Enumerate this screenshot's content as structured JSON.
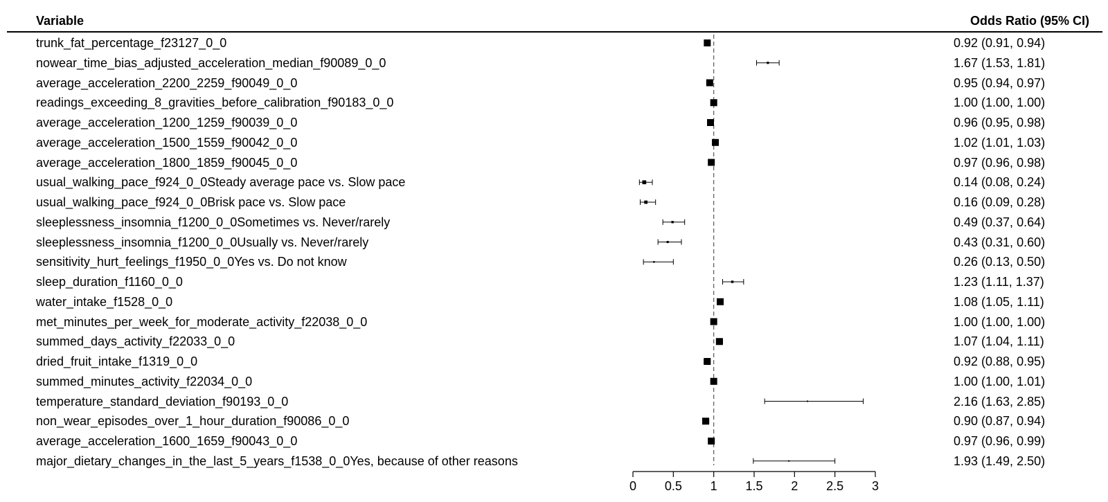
{
  "headers": {
    "variable": "Variable",
    "odds_ratio": "Odds Ratio (95% CI)"
  },
  "chart_data": {
    "type": "forest",
    "reference_line": 1,
    "xlim": [
      0,
      3
    ],
    "x_ticks": [
      "0",
      "0.5",
      "1",
      "1.5",
      "2",
      "2.5",
      "3"
    ],
    "rows": [
      {
        "label": "trunk_fat_percentage_f23127_0_0",
        "or": 0.92,
        "lo": 0.91,
        "hi": 0.94,
        "ci_text": "0.92 (0.91, 0.94)"
      },
      {
        "label": "nowear_time_bias_adjusted_acceleration_median_f90089_0_0",
        "or": 1.67,
        "lo": 1.53,
        "hi": 1.81,
        "ci_text": "1.67 (1.53, 1.81)"
      },
      {
        "label": "average_acceleration_2200_2259_f90049_0_0",
        "or": 0.95,
        "lo": 0.94,
        "hi": 0.97,
        "ci_text": "0.95 (0.94, 0.97)"
      },
      {
        "label": "readings_exceeding_8_gravities_before_calibration_f90183_0_0",
        "or": 1.0,
        "lo": 1.0,
        "hi": 1.0,
        "ci_text": "1.00 (1.00, 1.00)"
      },
      {
        "label": "average_acceleration_1200_1259_f90039_0_0",
        "or": 0.96,
        "lo": 0.95,
        "hi": 0.98,
        "ci_text": "0.96 (0.95, 0.98)"
      },
      {
        "label": "average_acceleration_1500_1559_f90042_0_0",
        "or": 1.02,
        "lo": 1.01,
        "hi": 1.03,
        "ci_text": "1.02 (1.01, 1.03)"
      },
      {
        "label": "average_acceleration_1800_1859_f90045_0_0",
        "or": 0.97,
        "lo": 0.96,
        "hi": 0.98,
        "ci_text": "0.97 (0.96, 0.98)"
      },
      {
        "label": "usual_walking_pace_f924_0_0Steady average pace vs. Slow pace",
        "or": 0.14,
        "lo": 0.08,
        "hi": 0.24,
        "ci_text": "0.14 (0.08, 0.24)"
      },
      {
        "label": "usual_walking_pace_f924_0_0Brisk pace vs. Slow pace",
        "or": 0.16,
        "lo": 0.09,
        "hi": 0.28,
        "ci_text": "0.16 (0.09, 0.28)"
      },
      {
        "label": "sleeplessness_insomnia_f1200_0_0Sometimes vs. Never/rarely",
        "or": 0.49,
        "lo": 0.37,
        "hi": 0.64,
        "ci_text": "0.49 (0.37, 0.64)"
      },
      {
        "label": "sleeplessness_insomnia_f1200_0_0Usually vs. Never/rarely",
        "or": 0.43,
        "lo": 0.31,
        "hi": 0.6,
        "ci_text": "0.43 (0.31, 0.60)"
      },
      {
        "label": "sensitivity_hurt_feelings_f1950_0_0Yes vs. Do not know",
        "or": 0.26,
        "lo": 0.13,
        "hi": 0.5,
        "ci_text": "0.26 (0.13, 0.50)"
      },
      {
        "label": "sleep_duration_f1160_0_0",
        "or": 1.23,
        "lo": 1.11,
        "hi": 1.37,
        "ci_text": "1.23 (1.11, 1.37)"
      },
      {
        "label": "water_intake_f1528_0_0",
        "or": 1.08,
        "lo": 1.05,
        "hi": 1.11,
        "ci_text": "1.08 (1.05, 1.11)"
      },
      {
        "label": "met_minutes_per_week_for_moderate_activity_f22038_0_0",
        "or": 1.0,
        "lo": 1.0,
        "hi": 1.0,
        "ci_text": "1.00 (1.00, 1.00)"
      },
      {
        "label": "summed_days_activity_f22033_0_0",
        "or": 1.07,
        "lo": 1.04,
        "hi": 1.11,
        "ci_text": "1.07 (1.04, 1.11)"
      },
      {
        "label": "dried_fruit_intake_f1319_0_0",
        "or": 0.92,
        "lo": 0.88,
        "hi": 0.95,
        "ci_text": "0.92 (0.88, 0.95)"
      },
      {
        "label": "summed_minutes_activity_f22034_0_0",
        "or": 1.0,
        "lo": 1.0,
        "hi": 1.01,
        "ci_text": "1.00 (1.00, 1.01)"
      },
      {
        "label": "temperature_standard_deviation_f90193_0_0",
        "or": 2.16,
        "lo": 1.63,
        "hi": 2.85,
        "ci_text": "2.16 (1.63, 2.85)"
      },
      {
        "label": "non_wear_episodes_over_1_hour_duration_f90086_0_0",
        "or": 0.9,
        "lo": 0.87,
        "hi": 0.94,
        "ci_text": "0.90 (0.87, 0.94)"
      },
      {
        "label": "average_acceleration_1600_1659_f90043_0_0",
        "or": 0.97,
        "lo": 0.96,
        "hi": 0.99,
        "ci_text": "0.97 (0.96, 0.99)"
      },
      {
        "label": "major_dietary_changes_in_the_last_5_years_f1538_0_0Yes, because of other reasons",
        "or": 1.93,
        "lo": 1.49,
        "hi": 2.5,
        "ci_text": "1.93 (1.49, 2.50)"
      }
    ]
  }
}
